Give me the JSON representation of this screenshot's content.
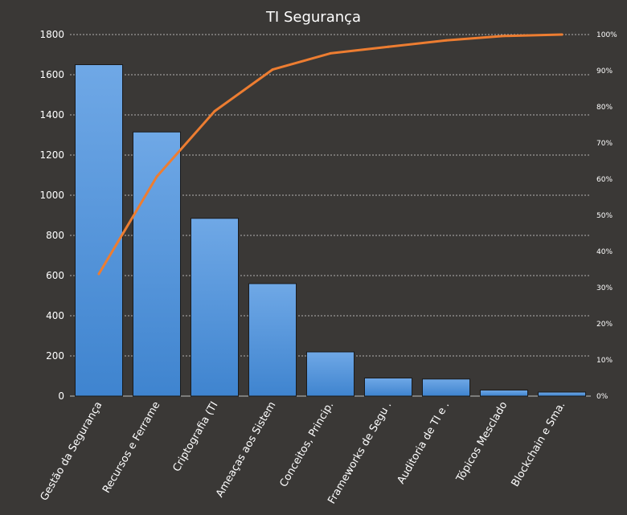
{
  "chart_data": {
    "type": "bar",
    "title": "TI Segurança",
    "categories": [
      "Gestão da Segurança",
      "Recursos e Ferrame",
      "Criptografia (TI",
      "Ameaças aos Sistem",
      "Conceitos, Princip.",
      "Frameworks  de Segu .",
      "Auditoria de TI e .",
      "Tópicos Mesclado",
      "Blockchain e Sma."
    ],
    "series": [
      {
        "type": "bar",
        "values": [
          1650,
          1315,
          885,
          560,
          220,
          90,
          85,
          30,
          20
        ]
      },
      {
        "type": "line",
        "axis": "right",
        "values": [
          33.8,
          60.7,
          78.8,
          90.3,
          94.8,
          96.6,
          98.4,
          99.6,
          100.0
        ]
      }
    ],
    "ylim": [
      0,
      1800
    ],
    "yticks": [
      "0",
      "200",
      "400",
      "600",
      "800",
      "1000",
      "1200",
      "1400",
      "1600",
      "1800"
    ],
    "y2lim": [
      0,
      100
    ],
    "y2ticks": [
      "0%",
      "10%",
      "20%",
      "30%",
      "40%",
      "50%",
      "60%",
      "70%",
      "80%",
      "90%",
      "100%"
    ],
    "grid": true,
    "legend": "none",
    "colors": {
      "bar": "#4a8fd8",
      "line": "#ed7d31",
      "background": "#3a3836",
      "grid": "#d9d9d9"
    }
  }
}
